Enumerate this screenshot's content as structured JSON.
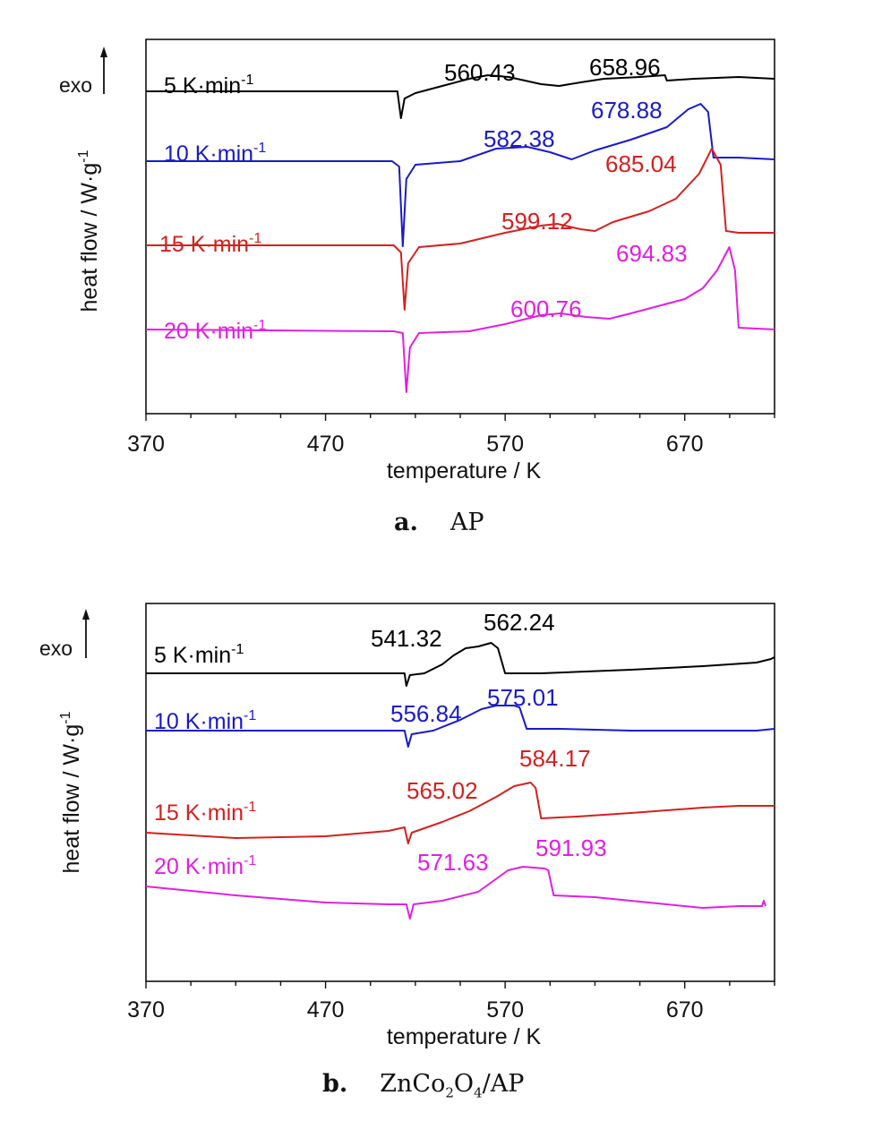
{
  "chart_data": [
    {
      "type": "line",
      "caption_prefix": "a.",
      "caption_text": "AP",
      "xlabel": "temperature / K",
      "ylabel": "heat flow / W·g",
      "ylabel_sup": "-1",
      "exo_label": "exo",
      "xlim": [
        370,
        720
      ],
      "x_ticks": [
        370,
        470,
        570,
        670
      ],
      "series": [
        {
          "name": "5 K·min",
          "sup": "-1",
          "color": "#000000",
          "peaks": [
            {
              "value": "560.43",
              "x": 560.43
            },
            {
              "value": "658.96",
              "x": 658.96
            }
          ],
          "points": [
            [
              370,
              0
            ],
            [
              505,
              0
            ],
            [
              510,
              0
            ],
            [
              512,
              -30
            ],
            [
              514,
              -8
            ],
            [
              520,
              -2
            ],
            [
              535,
              6
            ],
            [
              550,
              14
            ],
            [
              560.43,
              18
            ],
            [
              572,
              16
            ],
            [
              590,
              8
            ],
            [
              600,
              6
            ],
            [
              612,
              10
            ],
            [
              625,
              14
            ],
            [
              645,
              16
            ],
            [
              658.96,
              18
            ],
            [
              660,
              12
            ],
            [
              675,
              14
            ],
            [
              700,
              16
            ],
            [
              720,
              14
            ]
          ]
        },
        {
          "name": "10 K·min",
          "sup": "-1",
          "color": "#1a1ac8",
          "peaks": [
            {
              "value": "582.38",
              "x": 582.38
            },
            {
              "value": "678.88",
              "x": 678.88
            }
          ],
          "points": [
            [
              370,
              0
            ],
            [
              507,
              0
            ],
            [
              511,
              -6
            ],
            [
              513,
              -95
            ],
            [
              515,
              -20
            ],
            [
              520,
              -4
            ],
            [
              545,
              0
            ],
            [
              565,
              14
            ],
            [
              582.38,
              16
            ],
            [
              595,
              10
            ],
            [
              607,
              2
            ],
            [
              620,
              12
            ],
            [
              640,
              24
            ],
            [
              660,
              38
            ],
            [
              672,
              58
            ],
            [
              678.88,
              64
            ],
            [
              683,
              55
            ],
            [
              686,
              4
            ],
            [
              700,
              4
            ],
            [
              720,
              2
            ]
          ]
        },
        {
          "name": "15 K·min",
          "sup": "-1",
          "color": "#d42020",
          "peaks": [
            {
              "value": "599.12",
              "x": 599.12
            },
            {
              "value": "685.04",
              "x": 685.04
            }
          ],
          "points": [
            [
              370,
              0
            ],
            [
              508,
              0
            ],
            [
              512,
              -8
            ],
            [
              514,
              -72
            ],
            [
              516,
              -20
            ],
            [
              522,
              -2
            ],
            [
              545,
              2
            ],
            [
              570,
              14
            ],
            [
              590,
              22
            ],
            [
              599.12,
              24
            ],
            [
              612,
              18
            ],
            [
              620,
              16
            ],
            [
              630,
              26
            ],
            [
              650,
              38
            ],
            [
              665,
              52
            ],
            [
              678,
              80
            ],
            [
              685.04,
              108
            ],
            [
              690,
              90
            ],
            [
              693,
              16
            ],
            [
              700,
              14
            ],
            [
              720,
              14
            ]
          ]
        },
        {
          "name": "20 K·min",
          "sup": "-1",
          "color": "#e020e0",
          "peaks": [
            {
              "value": "600.76",
              "x": 600.76
            },
            {
              "value": "694.83",
              "x": 694.83
            }
          ],
          "points": [
            [
              370,
              0
            ],
            [
              508,
              -2
            ],
            [
              513,
              -4
            ],
            [
              515,
              -70
            ],
            [
              517,
              -20
            ],
            [
              522,
              -4
            ],
            [
              550,
              -2
            ],
            [
              570,
              6
            ],
            [
              590,
              16
            ],
            [
              600.76,
              18
            ],
            [
              615,
              14
            ],
            [
              628,
              12
            ],
            [
              640,
              18
            ],
            [
              655,
              26
            ],
            [
              670,
              34
            ],
            [
              680,
              46
            ],
            [
              688,
              66
            ],
            [
              694.83,
              92
            ],
            [
              698,
              66
            ],
            [
              700,
              2
            ],
            [
              720,
              0
            ]
          ]
        }
      ]
    },
    {
      "type": "line",
      "caption_prefix": "b.",
      "caption_parts": [
        "ZnCo",
        "2",
        "O",
        "4",
        "/AP"
      ],
      "xlabel": "temperature / K",
      "ylabel": "heat flow / W·g",
      "ylabel_sup": "-1",
      "exo_label": "exo",
      "xlim": [
        370,
        720
      ],
      "x_ticks": [
        370,
        470,
        570,
        670
      ],
      "series": [
        {
          "name": "5 K·min",
          "sup": "-1",
          "color": "#000000",
          "peaks": [
            {
              "value": "541.32",
              "x": 541.32
            },
            {
              "value": "562.24",
              "x": 562.24
            }
          ],
          "points": [
            [
              370,
              0
            ],
            [
              500,
              0
            ],
            [
              514,
              0
            ],
            [
              515,
              -14
            ],
            [
              517,
              -2
            ],
            [
              525,
              0
            ],
            [
              535,
              10
            ],
            [
              541.32,
              20
            ],
            [
              548,
              28
            ],
            [
              555,
              30
            ],
            [
              562.24,
              34
            ],
            [
              566,
              28
            ],
            [
              570,
              0
            ],
            [
              590,
              0
            ],
            [
              640,
              4
            ],
            [
              680,
              8
            ],
            [
              710,
              12
            ],
            [
              718,
              16
            ],
            [
              720,
              18
            ]
          ]
        },
        {
          "name": "10 K·min",
          "sup": "-1",
          "color": "#1a1ac8",
          "peaks": [
            {
              "value": "556.84",
              "x": 556.84
            },
            {
              "value": "575.01",
              "x": 575.01
            }
          ],
          "points": [
            [
              370,
              0
            ],
            [
              500,
              0
            ],
            [
              514,
              0
            ],
            [
              516,
              -18
            ],
            [
              518,
              -4
            ],
            [
              530,
              0
            ],
            [
              545,
              12
            ],
            [
              556.84,
              24
            ],
            [
              565,
              28
            ],
            [
              575.01,
              28
            ],
            [
              578,
              26
            ],
            [
              582,
              2
            ],
            [
              600,
              2
            ],
            [
              640,
              0
            ],
            [
              680,
              0
            ],
            [
              710,
              0
            ],
            [
              720,
              2
            ]
          ]
        },
        {
          "name": "15 K·min",
          "sup": "-1",
          "color": "#d42020",
          "peaks": [
            {
              "value": "565.02",
              "x": 565.02
            },
            {
              "value": "584.17",
              "x": 584.17
            }
          ],
          "points": [
            [
              370,
              0
            ],
            [
              420,
              -6
            ],
            [
              470,
              -4
            ],
            [
              505,
              2
            ],
            [
              514,
              6
            ],
            [
              516,
              -12
            ],
            [
              518,
              0
            ],
            [
              535,
              12
            ],
            [
              550,
              24
            ],
            [
              565.02,
              40
            ],
            [
              575,
              52
            ],
            [
              584.17,
              56
            ],
            [
              587,
              50
            ],
            [
              590,
              16
            ],
            [
              610,
              18
            ],
            [
              640,
              22
            ],
            [
              680,
              28
            ],
            [
              700,
              30
            ],
            [
              720,
              30
            ]
          ]
        },
        {
          "name": "20 K·min",
          "sup": "-1",
          "color": "#e020e0",
          "peaks": [
            {
              "value": "571.63",
              "x": 571.63
            },
            {
              "value": "591.93",
              "x": 591.93
            }
          ],
          "points": [
            [
              370,
              0
            ],
            [
              420,
              -10
            ],
            [
              470,
              -18
            ],
            [
              505,
              -20
            ],
            [
              515,
              -20
            ],
            [
              517,
              -36
            ],
            [
              519,
              -20
            ],
            [
              535,
              -16
            ],
            [
              555,
              -6
            ],
            [
              571.63,
              18
            ],
            [
              580,
              22
            ],
            [
              591.93,
              20
            ],
            [
              594,
              18
            ],
            [
              597,
              -10
            ],
            [
              620,
              -12
            ],
            [
              650,
              -18
            ],
            [
              680,
              -24
            ],
            [
              700,
              -22
            ],
            [
              713,
              -22
            ],
            [
              714,
              -16
            ],
            [
              715,
              -22
            ]
          ]
        }
      ]
    }
  ]
}
